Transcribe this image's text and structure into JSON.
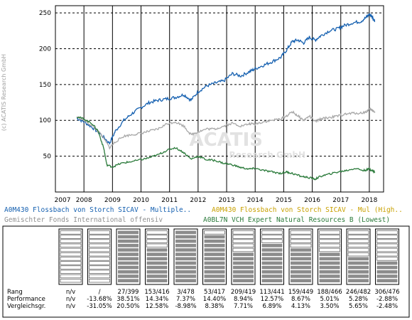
{
  "watermark": {
    "copyright": "(c) ACATIS Research GmbH",
    "logo_main": "ACATIS",
    "logo_sub": "Research GmbH"
  },
  "colors": {
    "blue": "#1560b0",
    "gray": "#a8a8a8",
    "green": "#2a7a3a",
    "gold": "#c8a000"
  },
  "chart_data": {
    "type": "line",
    "x_ticks": [
      "2007",
      "2008",
      "2009",
      "2010",
      "2011",
      "2012",
      "2013",
      "2014",
      "2015",
      "2016",
      "2017",
      "2018"
    ],
    "y_ticks": [
      50,
      100,
      150,
      200,
      250
    ],
    "xlim": [
      2007,
      2018.5
    ],
    "ylim": [
      0,
      260
    ],
    "grid": true,
    "series": [
      {
        "name": "A0M430 Flossbach von Storch SICAV - Multiple..",
        "color": "blue",
        "points": [
          [
            2007.75,
            103
          ],
          [
            2008.0,
            98
          ],
          [
            2008.3,
            90
          ],
          [
            2008.6,
            80
          ],
          [
            2008.9,
            68
          ],
          [
            2009.1,
            85
          ],
          [
            2009.4,
            100
          ],
          [
            2009.7,
            110
          ],
          [
            2010.0,
            118
          ],
          [
            2010.3,
            125
          ],
          [
            2010.6,
            128
          ],
          [
            2010.9,
            130
          ],
          [
            2011.2,
            132
          ],
          [
            2011.5,
            136
          ],
          [
            2011.75,
            128
          ],
          [
            2012.0,
            140
          ],
          [
            2012.3,
            148
          ],
          [
            2012.6,
            152
          ],
          [
            2012.9,
            155
          ],
          [
            2013.2,
            165
          ],
          [
            2013.5,
            162
          ],
          [
            2013.8,
            168
          ],
          [
            2014.0,
            172
          ],
          [
            2014.3,
            177
          ],
          [
            2014.6,
            182
          ],
          [
            2014.9,
            188
          ],
          [
            2015.1,
            198
          ],
          [
            2015.3,
            210
          ],
          [
            2015.5,
            212
          ],
          [
            2015.7,
            208
          ],
          [
            2015.9,
            216
          ],
          [
            2016.1,
            212
          ],
          [
            2016.3,
            218
          ],
          [
            2016.6,
            225
          ],
          [
            2016.9,
            228
          ],
          [
            2017.1,
            232
          ],
          [
            2017.4,
            236
          ],
          [
            2017.7,
            238
          ],
          [
            2017.9,
            244
          ],
          [
            2018.0,
            248
          ],
          [
            2018.1,
            245
          ],
          [
            2018.2,
            238
          ]
        ]
      },
      {
        "name": "A0M430 Flossbach von Storch SICAV - Mul (High..",
        "color": "gold",
        "points": []
      },
      {
        "name": "Gemischter Fonds International offensiv",
        "color": "gray",
        "points": [
          [
            2007.75,
            105
          ],
          [
            2008.0,
            100
          ],
          [
            2008.3,
            92
          ],
          [
            2008.6,
            80
          ],
          [
            2008.9,
            62
          ],
          [
            2009.1,
            70
          ],
          [
            2009.4,
            78
          ],
          [
            2009.7,
            80
          ],
          [
            2010.0,
            82
          ],
          [
            2010.3,
            85
          ],
          [
            2010.6,
            88
          ],
          [
            2010.9,
            95
          ],
          [
            2011.2,
            98
          ],
          [
            2011.5,
            92
          ],
          [
            2011.75,
            80
          ],
          [
            2012.0,
            84
          ],
          [
            2012.3,
            88
          ],
          [
            2012.6,
            88
          ],
          [
            2012.9,
            92
          ],
          [
            2013.2,
            96
          ],
          [
            2013.5,
            92
          ],
          [
            2013.8,
            95
          ],
          [
            2014.0,
            95
          ],
          [
            2014.3,
            98
          ],
          [
            2014.6,
            100
          ],
          [
            2014.9,
            102
          ],
          [
            2015.1,
            106
          ],
          [
            2015.3,
            112
          ],
          [
            2015.5,
            106
          ],
          [
            2015.7,
            100
          ],
          [
            2015.9,
            106
          ],
          [
            2016.1,
            98
          ],
          [
            2016.3,
            102
          ],
          [
            2016.6,
            104
          ],
          [
            2016.9,
            106
          ],
          [
            2017.1,
            108
          ],
          [
            2017.4,
            110
          ],
          [
            2017.7,
            110
          ],
          [
            2017.9,
            112
          ],
          [
            2018.0,
            116
          ],
          [
            2018.1,
            114
          ],
          [
            2018.2,
            112
          ]
        ]
      },
      {
        "name": "A0BL7N VCH Expert Natural Resources B (Lowest)",
        "color": "green",
        "points": [
          [
            2007.75,
            105
          ],
          [
            2008.0,
            102
          ],
          [
            2008.3,
            95
          ],
          [
            2008.5,
            85
          ],
          [
            2008.7,
            60
          ],
          [
            2008.8,
            38
          ],
          [
            2009.0,
            35
          ],
          [
            2009.3,
            40
          ],
          [
            2009.6,
            42
          ],
          [
            2010.0,
            45
          ],
          [
            2010.3,
            48
          ],
          [
            2010.6,
            52
          ],
          [
            2010.9,
            58
          ],
          [
            2011.2,
            62
          ],
          [
            2011.5,
            55
          ],
          [
            2011.75,
            46
          ],
          [
            2012.0,
            50
          ],
          [
            2012.3,
            45
          ],
          [
            2012.6,
            44
          ],
          [
            2012.9,
            40
          ],
          [
            2013.2,
            38
          ],
          [
            2013.5,
            34
          ],
          [
            2013.8,
            32
          ],
          [
            2014.0,
            33
          ],
          [
            2014.3,
            30
          ],
          [
            2014.6,
            28
          ],
          [
            2014.9,
            26
          ],
          [
            2015.1,
            28
          ],
          [
            2015.3,
            26
          ],
          [
            2015.6,
            22
          ],
          [
            2015.9,
            20
          ],
          [
            2016.1,
            18
          ],
          [
            2016.3,
            22
          ],
          [
            2016.6,
            25
          ],
          [
            2016.9,
            28
          ],
          [
            2017.2,
            30
          ],
          [
            2017.5,
            33
          ],
          [
            2017.8,
            30
          ],
          [
            2018.0,
            32
          ],
          [
            2018.1,
            30
          ],
          [
            2018.2,
            28
          ]
        ]
      }
    ],
    "performance": {
      "row_labels": [
        "Rang",
        "Performance",
        "Vergleichsgr."
      ],
      "periods": [
        {
          "rang": "n/v",
          "perf": "n/v",
          "vgl": "n/v",
          "level": 0
        },
        {
          "rang": "/",
          "perf": "-13.68%",
          "vgl": "-31.05%",
          "level": 0
        },
        {
          "rang": "27/399",
          "perf": "38.51%",
          "vgl": "20.50%",
          "level": 1.0
        },
        {
          "rang": "153/416",
          "perf": "14.34%",
          "vgl": "12.58%",
          "level": 0.65
        },
        {
          "rang": "3/478",
          "perf": "7.37%",
          "vgl": "-8.98%",
          "level": 1.0
        },
        {
          "rang": "53/417",
          "perf": "14.40%",
          "vgl": "8.38%",
          "level": 0.9
        },
        {
          "rang": "209/419",
          "perf": "8.94%",
          "vgl": "7.71%",
          "level": 0.55
        },
        {
          "rang": "113/441",
          "perf": "12.57%",
          "vgl": "6.89%",
          "level": 0.78
        },
        {
          "rang": "159/449",
          "perf": "8.67%",
          "vgl": "4.13%",
          "level": 0.68
        },
        {
          "rang": "188/466",
          "perf": "5.01%",
          "vgl": "3.50%",
          "level": 0.6
        },
        {
          "rang": "246/482",
          "perf": "5.28%",
          "vgl": "5.65%",
          "level": 0.5
        },
        {
          "rang": "306/476",
          "perf": "-2.88%",
          "vgl": "-2.48%",
          "level": 0.38
        }
      ]
    }
  }
}
